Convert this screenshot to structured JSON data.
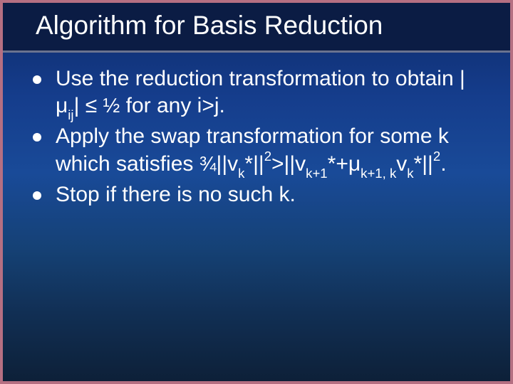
{
  "slide": {
    "background_gradient": [
      "#0e2a6a",
      "#153d8c",
      "#194a98",
      "#154175",
      "#112f54",
      "#0d2038"
    ],
    "border_color": "#b56f82",
    "title_bar_bg": "#0b1c44",
    "title_bar_underline": "#6a738f",
    "text_color": "#ffffff",
    "font_family": "Comic Sans MS",
    "title": "Algorithm for Basis Reduction",
    "title_fontsize": 37,
    "body_fontsize": 30,
    "bullets": [
      {
        "pre": "Use the reduction transformation to obtain |",
        "mu": "μ",
        "mu_sub": "ij",
        "mid1": "| ≤ ",
        "half": "½",
        "mid2": " for any ",
        "igtj": "i>j",
        "end": "."
      },
      {
        "pre": "Apply the swap transformation for some ",
        "k": "k",
        "mid1": " which satisfies ",
        "frac34": "¾",
        "norm1a": "||v",
        "sub_k": "k",
        "norm1b": "*||",
        "sq1": "2",
        "gt": ">||v",
        "sub_kp1": "k+1",
        "star_plus": "*+",
        "mu2": "μ",
        "mu2_sub": "k+1, k",
        "v2": "v",
        "sub_k2": "k",
        "norm2b": "*||",
        "sq2": "2",
        "end": "."
      },
      {
        "pre": "Stop if there is no such ",
        "k": "k",
        "end": "."
      }
    ]
  }
}
